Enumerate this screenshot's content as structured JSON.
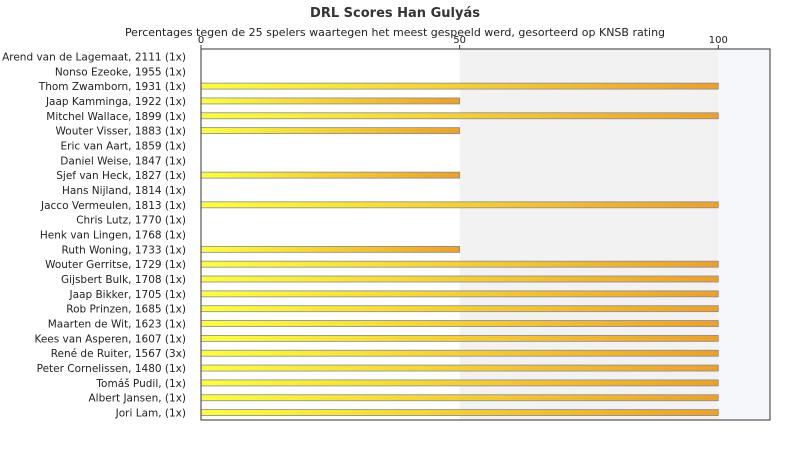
{
  "chart_data": {
    "type": "bar",
    "orientation": "horizontal",
    "title": "DRL Scores Han Gulyás",
    "subtitle": "Percentages tegen de 25 spelers waartegen het meest gespeeld werd, gesorteerd op KNSB rating",
    "xlabel": "",
    "ylabel": "",
    "xlim": [
      0,
      110
    ],
    "x_ticks": [
      "0",
      "50",
      "100"
    ],
    "x_tick_values": [
      0,
      50,
      100
    ],
    "legend": "none",
    "grid": "vertical bands",
    "colors": {
      "bar_start": "#ffff33",
      "bar_end": "#f0a020",
      "bar_border": "#7a8bb5",
      "band_light": "#f2f2f2",
      "band_lighter": "#f5f7fb",
      "axis": "#333333"
    },
    "categories": [
      "Arend van de Lagemaat, 2111 (1x)",
      "Nonso Ezeoke, 1955 (1x)",
      "Thom Zwamborn, 1931 (1x)",
      "Jaap Kamminga, 1922 (1x)",
      "Mitchel Wallace, 1899 (1x)",
      "Wouter Visser, 1883 (1x)",
      "Eric van Aart, 1859 (1x)",
      "Daniel Weise, 1847 (1x)",
      "Sjef van Heck, 1827 (1x)",
      "Hans Nijland, 1814 (1x)",
      "Jacco Vermeulen, 1813 (1x)",
      "Chris Lutz, 1770 (1x)",
      "Henk van Lingen, 1768 (1x)",
      "Ruth Woning, 1733 (1x)",
      "Wouter Gerritse, 1729 (1x)",
      "Gijsbert Bulk, 1708 (1x)",
      "Jaap Bikker, 1705 (1x)",
      "Rob Prinzen, 1685 (1x)",
      "Maarten de Wit, 1623 (1x)",
      "Kees van Asperen, 1607 (1x)",
      "René de Ruiter, 1567 (3x)",
      "Peter Cornelissen, 1480 (1x)",
      "Tomáš Pudil,  (1x)",
      "Albert Jansen,  (1x)",
      "Jori Lam,  (1x)"
    ],
    "values": [
      0,
      0,
      100,
      50,
      100,
      50,
      0,
      0,
      50,
      0,
      100,
      0,
      0,
      50,
      100,
      100,
      100,
      100,
      100,
      100,
      100,
      100,
      100,
      100,
      100
    ]
  }
}
